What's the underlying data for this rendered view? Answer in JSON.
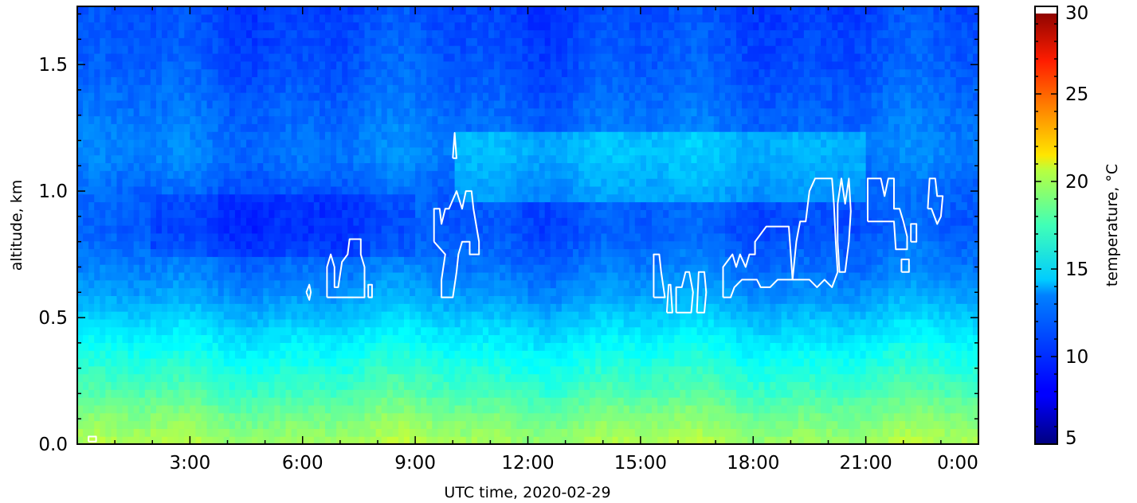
{
  "chart_data": {
    "type": "heatmap",
    "title": "",
    "xlabel": "UTC time,  2020-02-29",
    "ylabel": "altitude, km",
    "x_range_hours": [
      0,
      24
    ],
    "ylim": [
      0,
      1.73
    ],
    "x_tick_labels": [
      {
        "hour": 3,
        "label": "3:00"
      },
      {
        "hour": 6,
        "label": "6:00"
      },
      {
        "hour": 9,
        "label": "9:00"
      },
      {
        "hour": 12,
        "label": "12:00"
      },
      {
        "hour": 15,
        "label": "15:00"
      },
      {
        "hour": 18,
        "label": "18:00"
      },
      {
        "hour": 21,
        "label": "21:00"
      },
      {
        "hour": 24,
        "label": "0:00"
      }
    ],
    "y_tick_labels": [
      {
        "value": 0.0,
        "label": "0.0"
      },
      {
        "value": 0.5,
        "label": "0.5"
      },
      {
        "value": 1.0,
        "label": "1.0"
      },
      {
        "value": 1.5,
        "label": "1.5"
      }
    ],
    "colorbar": {
      "label": "temperature, °C",
      "min": 5,
      "max": 30,
      "colormap": "jet",
      "ticks": [
        {
          "value": 5,
          "label": "5"
        },
        {
          "value": 10,
          "label": "10"
        },
        {
          "value": 15,
          "label": "15"
        },
        {
          "value": 20,
          "label": "20"
        },
        {
          "value": 25,
          "label": "25"
        },
        {
          "value": 30,
          "label": "30"
        }
      ]
    },
    "temperature_profile_by_altitude": [
      {
        "alt": 0.0,
        "temp": 18.5
      },
      {
        "alt": 0.1,
        "temp": 17.5
      },
      {
        "alt": 0.2,
        "temp": 16.2
      },
      {
        "alt": 0.3,
        "temp": 15.2
      },
      {
        "alt": 0.4,
        "temp": 14.2
      },
      {
        "alt": 0.5,
        "temp": 13.0
      },
      {
        "alt": 0.6,
        "temp": 11.8
      },
      {
        "alt": 0.7,
        "temp": 11.0
      },
      {
        "alt": 0.85,
        "temp": 10.2
      },
      {
        "alt": 1.0,
        "temp": 10.4
      },
      {
        "alt": 1.15,
        "temp": 11.2
      },
      {
        "alt": 1.3,
        "temp": 10.8
      },
      {
        "alt": 1.5,
        "temp": 10.2
      },
      {
        "alt": 1.73,
        "temp": 9.8
      }
    ],
    "cloud_contours": [
      {
        "name": "cloud-a",
        "points": [
          [
            6.1,
            0.6
          ],
          [
            6.18,
            0.63
          ],
          [
            6.22,
            0.6
          ],
          [
            6.18,
            0.57
          ],
          [
            6.1,
            0.6
          ]
        ]
      },
      {
        "name": "cloud-b",
        "points": [
          [
            6.65,
            0.58
          ],
          [
            6.65,
            0.7
          ],
          [
            6.75,
            0.75
          ],
          [
            6.85,
            0.7
          ],
          [
            6.85,
            0.62
          ],
          [
            6.95,
            0.62
          ],
          [
            7.05,
            0.72
          ],
          [
            7.2,
            0.75
          ],
          [
            7.25,
            0.81
          ],
          [
            7.55,
            0.81
          ],
          [
            7.55,
            0.75
          ],
          [
            7.65,
            0.7
          ],
          [
            7.65,
            0.58
          ],
          [
            6.65,
            0.58
          ]
        ]
      },
      {
        "name": "cloud-c",
        "points": [
          [
            7.75,
            0.58
          ],
          [
            7.75,
            0.63
          ],
          [
            7.85,
            0.63
          ],
          [
            7.85,
            0.58
          ],
          [
            7.75,
            0.58
          ]
        ]
      },
      {
        "name": "cloud-d",
        "points": [
          [
            10.0,
            1.13
          ],
          [
            10.05,
            1.23
          ],
          [
            10.1,
            1.13
          ],
          [
            10.0,
            1.13
          ]
        ]
      },
      {
        "name": "cloud-e",
        "points": [
          [
            9.5,
            0.8
          ],
          [
            9.5,
            0.93
          ],
          [
            9.65,
            0.93
          ],
          [
            9.7,
            0.87
          ],
          [
            9.8,
            0.93
          ],
          [
            9.9,
            0.93
          ],
          [
            10.1,
            1.0
          ],
          [
            10.25,
            0.93
          ],
          [
            10.35,
            1.0
          ],
          [
            10.5,
            1.0
          ],
          [
            10.55,
            0.93
          ],
          [
            10.7,
            0.8
          ],
          [
            10.7,
            0.75
          ],
          [
            10.45,
            0.75
          ],
          [
            10.45,
            0.8
          ],
          [
            10.25,
            0.8
          ],
          [
            10.15,
            0.75
          ],
          [
            10.1,
            0.68
          ],
          [
            10.0,
            0.58
          ],
          [
            9.7,
            0.58
          ],
          [
            9.7,
            0.65
          ],
          [
            9.8,
            0.75
          ],
          [
            9.5,
            0.8
          ]
        ]
      },
      {
        "name": "cloud-f",
        "points": [
          [
            15.35,
            0.58
          ],
          [
            15.35,
            0.75
          ],
          [
            15.5,
            0.75
          ],
          [
            15.55,
            0.68
          ],
          [
            15.65,
            0.58
          ],
          [
            15.35,
            0.58
          ]
        ]
      },
      {
        "name": "cloud-g",
        "points": [
          [
            15.7,
            0.52
          ],
          [
            15.75,
            0.63
          ],
          [
            15.8,
            0.63
          ],
          [
            15.85,
            0.52
          ],
          [
            15.7,
            0.52
          ]
        ]
      },
      {
        "name": "cloud-h",
        "points": [
          [
            15.95,
            0.52
          ],
          [
            15.95,
            0.62
          ],
          [
            16.1,
            0.62
          ],
          [
            16.2,
            0.68
          ],
          [
            16.3,
            0.68
          ],
          [
            16.4,
            0.6
          ],
          [
            16.35,
            0.52
          ],
          [
            15.95,
            0.52
          ]
        ]
      },
      {
        "name": "cloud-i",
        "points": [
          [
            16.5,
            0.52
          ],
          [
            16.55,
            0.68
          ],
          [
            16.7,
            0.68
          ],
          [
            16.75,
            0.6
          ],
          [
            16.7,
            0.52
          ],
          [
            16.5,
            0.52
          ]
        ]
      },
      {
        "name": "cloud-j",
        "points": [
          [
            17.2,
            0.58
          ],
          [
            17.2,
            0.7
          ],
          [
            17.45,
            0.75
          ],
          [
            17.55,
            0.7
          ],
          [
            17.65,
            0.75
          ],
          [
            17.8,
            0.7
          ],
          [
            17.9,
            0.75
          ],
          [
            18.05,
            0.75
          ],
          [
            18.05,
            0.8
          ],
          [
            18.35,
            0.86
          ],
          [
            18.95,
            0.86
          ],
          [
            19.05,
            0.65
          ],
          [
            18.65,
            0.65
          ],
          [
            18.45,
            0.62
          ],
          [
            18.2,
            0.62
          ],
          [
            18.1,
            0.65
          ],
          [
            17.9,
            0.65
          ],
          [
            17.7,
            0.65
          ],
          [
            17.5,
            0.62
          ],
          [
            17.4,
            0.58
          ],
          [
            17.2,
            0.58
          ]
        ]
      },
      {
        "name": "cloud-k",
        "points": [
          [
            19.05,
            0.65
          ],
          [
            19.15,
            0.8
          ],
          [
            19.25,
            0.88
          ],
          [
            19.4,
            0.88
          ],
          [
            19.5,
            1.0
          ],
          [
            19.65,
            1.05
          ],
          [
            20.1,
            1.05
          ],
          [
            20.15,
            0.95
          ],
          [
            20.2,
            0.8
          ],
          [
            20.25,
            0.68
          ],
          [
            20.1,
            0.62
          ],
          [
            19.9,
            0.65
          ],
          [
            19.7,
            0.62
          ],
          [
            19.5,
            0.65
          ],
          [
            19.05,
            0.65
          ]
        ]
      },
      {
        "name": "cloud-l",
        "points": [
          [
            20.25,
            0.95
          ],
          [
            20.35,
            1.05
          ],
          [
            20.45,
            0.95
          ],
          [
            20.55,
            1.05
          ],
          [
            20.6,
            0.92
          ],
          [
            20.55,
            0.8
          ],
          [
            20.45,
            0.68
          ],
          [
            20.3,
            0.68
          ],
          [
            20.25,
            0.8
          ],
          [
            20.25,
            0.95
          ]
        ]
      },
      {
        "name": "cloud-m",
        "points": [
          [
            21.05,
            0.88
          ],
          [
            21.05,
            1.05
          ],
          [
            21.4,
            1.05
          ],
          [
            21.5,
            0.98
          ],
          [
            21.6,
            1.05
          ],
          [
            21.75,
            1.05
          ],
          [
            21.75,
            0.93
          ],
          [
            21.9,
            0.93
          ],
          [
            22.0,
            0.88
          ],
          [
            22.1,
            0.82
          ],
          [
            22.1,
            0.77
          ],
          [
            21.8,
            0.77
          ],
          [
            21.75,
            0.88
          ],
          [
            21.05,
            0.88
          ]
        ]
      },
      {
        "name": "cloud-n",
        "points": [
          [
            22.2,
            0.8
          ],
          [
            22.2,
            0.87
          ],
          [
            22.35,
            0.87
          ],
          [
            22.35,
            0.8
          ],
          [
            22.2,
            0.8
          ]
        ]
      },
      {
        "name": "cloud-o",
        "points": [
          [
            22.65,
            0.93
          ],
          [
            22.7,
            1.05
          ],
          [
            22.85,
            1.05
          ],
          [
            22.9,
            0.98
          ],
          [
            23.05,
            0.98
          ],
          [
            23.0,
            0.9
          ],
          [
            22.9,
            0.87
          ],
          [
            22.75,
            0.93
          ],
          [
            22.65,
            0.93
          ]
        ]
      },
      {
        "name": "cloud-p",
        "points": [
          [
            21.95,
            0.68
          ],
          [
            21.95,
            0.73
          ],
          [
            22.15,
            0.73
          ],
          [
            22.15,
            0.68
          ],
          [
            21.95,
            0.68
          ]
        ]
      },
      {
        "name": "cloud-q",
        "points": [
          [
            0.3,
            0.01
          ],
          [
            0.3,
            0.03
          ],
          [
            0.5,
            0.03
          ],
          [
            0.5,
            0.01
          ],
          [
            0.3,
            0.01
          ]
        ]
      }
    ]
  }
}
